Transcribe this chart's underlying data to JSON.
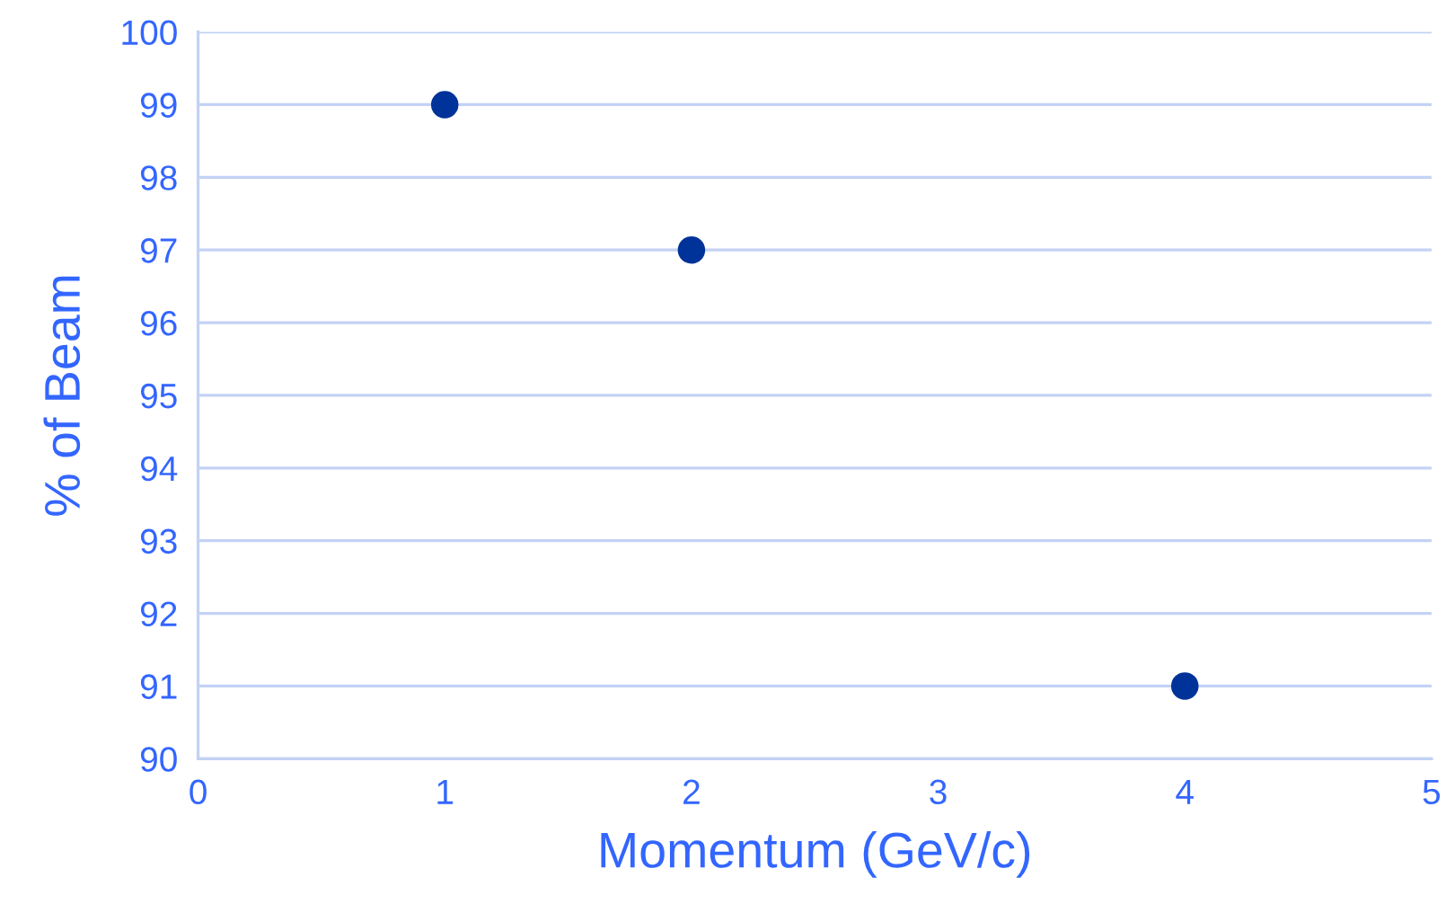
{
  "chart_data": {
    "type": "scatter",
    "xlabel": "Momentum (GeV/c)",
    "ylabel": "% of Beam",
    "x": [
      1,
      2,
      4
    ],
    "values": [
      99,
      97,
      91
    ],
    "color": "#003399",
    "marker": "circle",
    "xlim": [
      0,
      5
    ],
    "xticks": [
      0,
      1,
      2,
      3,
      4,
      5
    ],
    "ylim": [
      90,
      100
    ],
    "yticks": [
      90,
      91,
      92,
      93,
      94,
      95,
      96,
      97,
      98,
      99,
      100
    ],
    "grid": "y"
  }
}
